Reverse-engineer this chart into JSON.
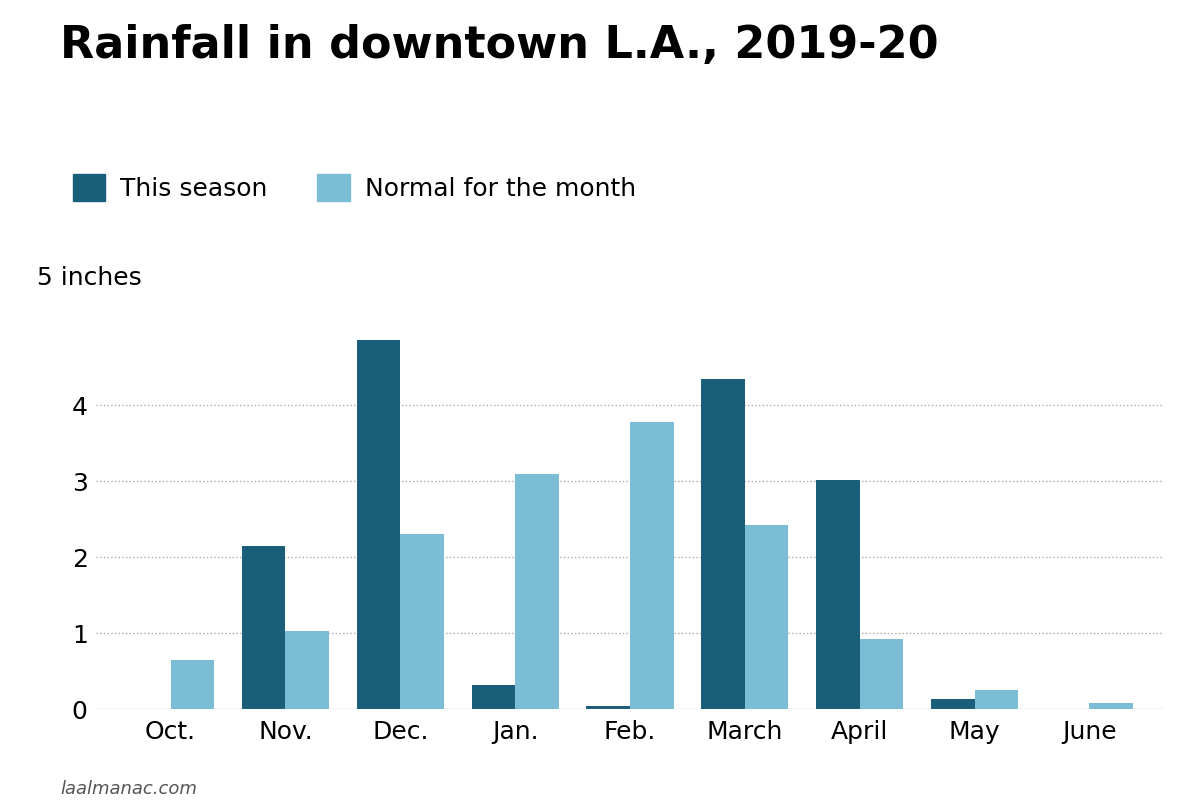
{
  "title": "Rainfall in downtown L.A., 2019-20",
  "legend_this_season": "This season",
  "legend_normal": "Normal for the month",
  "categories": [
    "Oct.",
    "Nov.",
    "Dec.",
    "Jan.",
    "Feb.",
    "March",
    "April",
    "May",
    "June"
  ],
  "this_season": [
    0.0,
    2.15,
    4.85,
    0.32,
    0.04,
    4.35,
    3.02,
    0.13,
    0.0
  ],
  "normal": [
    0.65,
    1.03,
    2.3,
    3.1,
    3.78,
    2.43,
    0.93,
    0.26,
    0.08
  ],
  "color_this_season": "#1a5f7a",
  "color_normal": "#7bbdd4",
  "ylabel_text": "5 inches",
  "ylim": [
    0,
    5.3
  ],
  "yticks": [
    0,
    1,
    2,
    3,
    4
  ],
  "background_color": "#ffffff",
  "grid_color": "#aaaaaa",
  "source": "laalmanac.com",
  "title_fontsize": 32,
  "legend_fontsize": 18,
  "tick_fontsize": 18,
  "ylabel_fontsize": 18
}
